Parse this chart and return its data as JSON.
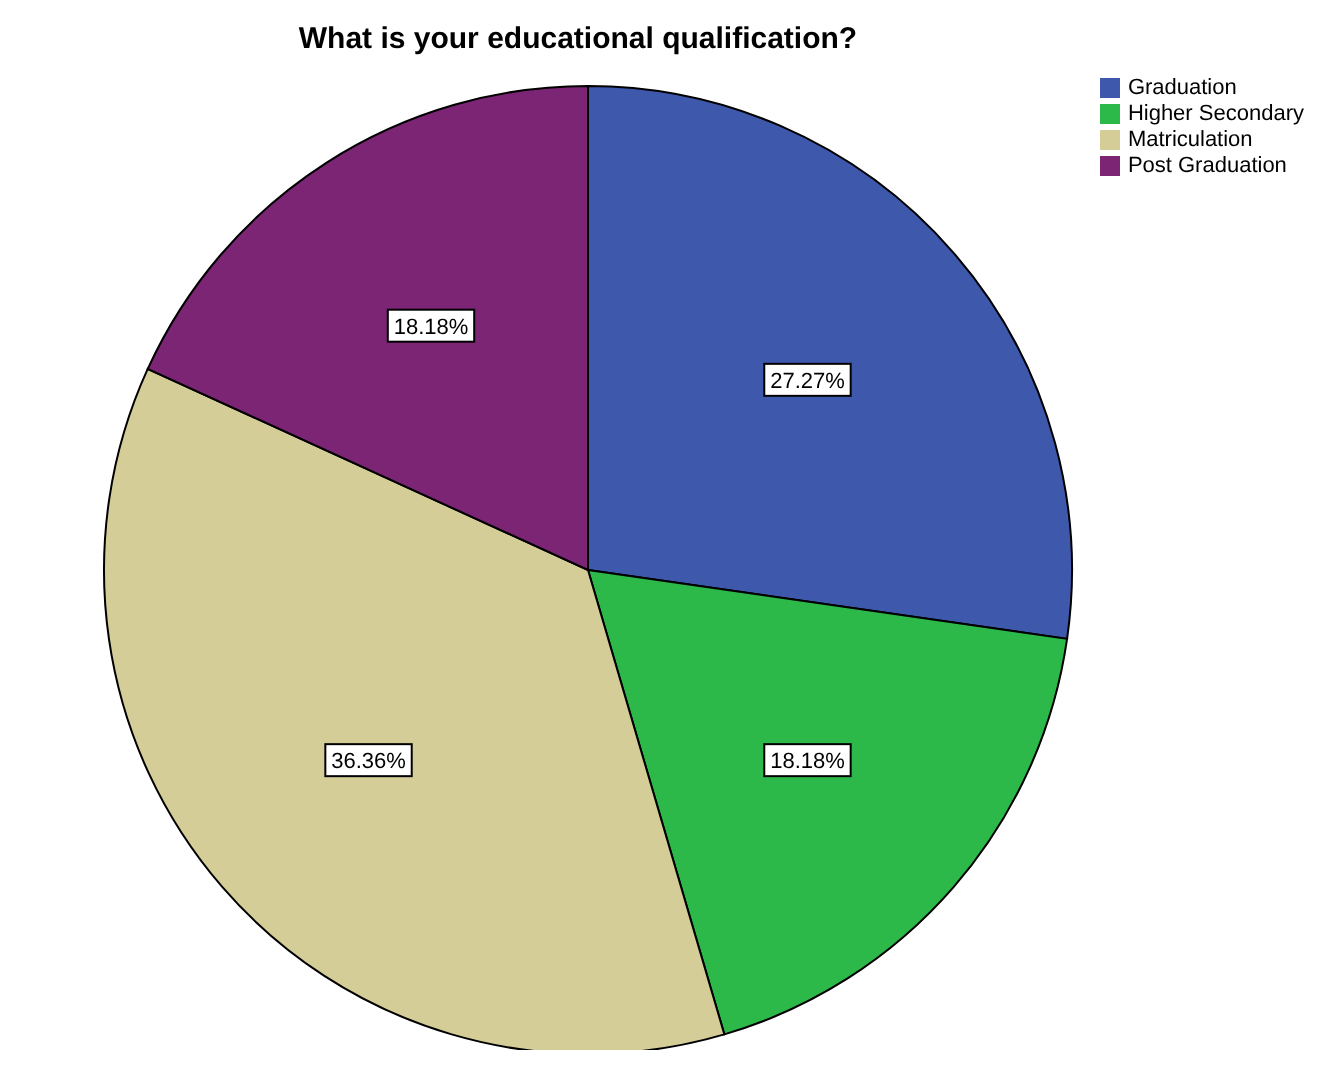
{
  "chart_data": {
    "type": "pie",
    "title": "What is your educational qualification?",
    "categories": [
      "Graduation",
      "Higher Secondary",
      "Matriculation",
      "Post Graduation"
    ],
    "values": [
      27.27,
      18.18,
      36.36,
      18.18
    ],
    "colors": [
      "#3e58ac",
      "#2db84a",
      "#d4cd98",
      "#7b2574"
    ],
    "value_labels": [
      "27.27%",
      "18.18%",
      "36.36%",
      "18.18%"
    ],
    "legend": "top right"
  }
}
